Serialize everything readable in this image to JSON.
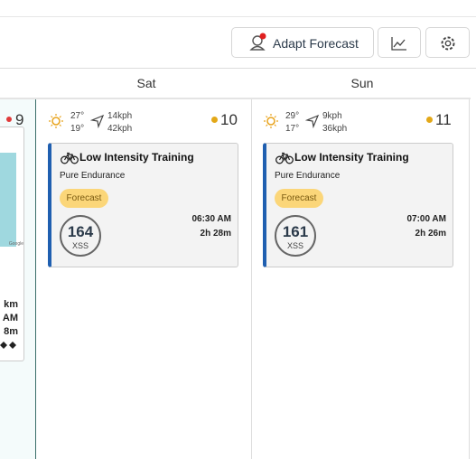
{
  "toolbar": {
    "adapt_button": "Adapt Forecast"
  },
  "partial_day": {
    "number": "9",
    "lines": [
      "km",
      "AM",
      "8m"
    ],
    "map_credit": "Google"
  },
  "days": [
    {
      "label": "Sat",
      "temp_high": "27°",
      "temp_low": "19°",
      "wind": "14kph",
      "gust": "42kph",
      "number": "10",
      "workout": {
        "title": "Low Intensity Training",
        "subtitle": "Pure Endurance",
        "tag": "Forecast",
        "score": "164",
        "score_unit": "XSS",
        "time": "06:30 AM",
        "duration": "2h 28m"
      }
    },
    {
      "label": "Sun",
      "temp_high": "29°",
      "temp_low": "17°",
      "wind": "9kph",
      "gust": "36kph",
      "number": "11",
      "workout": {
        "title": "Low Intensity Training",
        "subtitle": "Pure Endurance",
        "tag": "Forecast",
        "score": "161",
        "score_unit": "XSS",
        "time": "07:00 AM",
        "duration": "2h 26m"
      }
    }
  ]
}
